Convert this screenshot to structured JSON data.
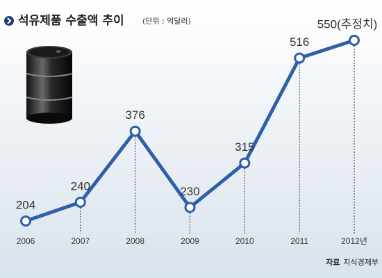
{
  "chart_data": {
    "type": "line",
    "title": "석유제품 수출액 추이",
    "subtitle": "(단위 : 억달러)",
    "categories": [
      "2006",
      "2007",
      "2008",
      "2009",
      "2010",
      "2011",
      "2012년"
    ],
    "values": [
      204,
      240,
      376,
      230,
      315,
      516,
      550
    ],
    "value_labels": [
      "204",
      "240",
      "376",
      "230",
      "315",
      "516",
      "550(추정치)"
    ],
    "color": "#2d5fab",
    "source_label": "자료",
    "source": "지식경제부"
  }
}
